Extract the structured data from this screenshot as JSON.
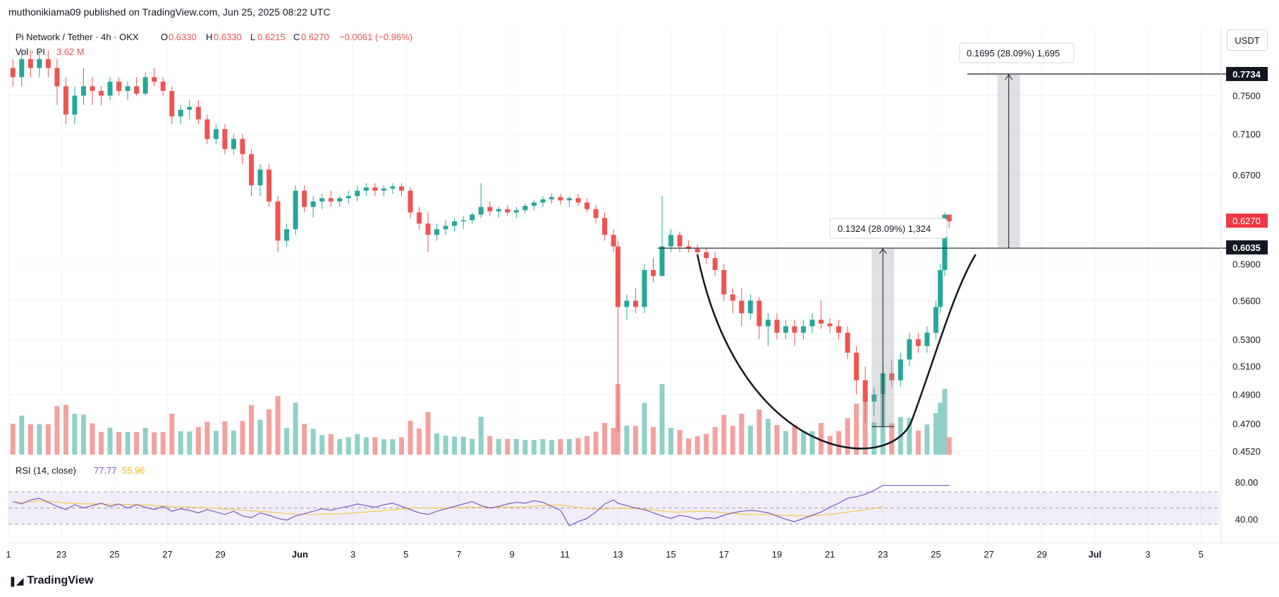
{
  "header": {
    "publisher": "muthonikiama09 published on TradingView.com, Jun 25, 2025 08:22 UTC"
  },
  "legend": {
    "symbol": "Pi Network / Tether · 4h · OKX",
    "o_label": "O",
    "o_value": "0.6330",
    "h_label": "H",
    "h_value": "0.6330",
    "l_label": "L",
    "l_value": "0.6215",
    "c_label": "C",
    "c_value": "0.6270",
    "change": "−0.0061 (−0.96%)",
    "vol_label": "Vol · PI",
    "vol_value": "3.62 M"
  },
  "currency_button": "USDT",
  "brand": {
    "name": "TradingView"
  },
  "colors": {
    "up": "#26a69a",
    "down": "#ef5350",
    "vol_up": "#8fd0c8",
    "vol_down": "#f4a09e",
    "rsi": "#7e57c2",
    "rsi_ma": "#f7c948"
  },
  "price_labels": {
    "target": "0.7734",
    "current": "0.6270",
    "breakout": "0.6035"
  },
  "measure_labels": {
    "upper": "0.1695 (28.09%) 1,695",
    "lower": "0.1324 (28.09%) 1,324"
  },
  "rsi": {
    "label": "RSI (14, close)",
    "value": "77.77",
    "ma_value": "55.96",
    "levels": [
      "80.00",
      "40.00"
    ]
  },
  "chart_data": {
    "type": "candlestick",
    "title": "Pi Network / Tether · 4h · OKX",
    "y_scale": "log",
    "y_ticks": [
      "0.7500",
      "0.7100",
      "0.6700",
      "0.5900",
      "0.5600",
      "0.5300",
      "0.5100",
      "0.4900",
      "0.4700",
      "0.4520"
    ],
    "x_ticks": [
      "1",
      "23",
      "25",
      "27",
      "29",
      "Jun",
      "3",
      "5",
      "7",
      "9",
      "11",
      "13",
      "15",
      "17",
      "19",
      "21",
      "23",
      "25",
      "27",
      "29",
      "Jul",
      "3",
      "5"
    ],
    "x_range_days": [
      "May 21",
      "Jul 5"
    ],
    "candles": [
      [
        "May 21 04:00",
        0.78,
        0.79,
        0.76,
        0.77
      ],
      [
        "May 21 12:00",
        0.77,
        0.8,
        0.76,
        0.79
      ],
      [
        "May 21 20:00",
        0.79,
        0.8,
        0.77,
        0.78
      ],
      [
        "May 22 04:00",
        0.78,
        0.8,
        0.77,
        0.79
      ],
      [
        "May 22 12:00",
        0.79,
        0.8,
        0.77,
        0.78
      ],
      [
        "May 22 20:00",
        0.78,
        0.79,
        0.74,
        0.76
      ],
      [
        "May 23 04:00",
        0.76,
        0.77,
        0.72,
        0.73
      ],
      [
        "May 23 12:00",
        0.73,
        0.76,
        0.72,
        0.75
      ],
      [
        "May 23 20:00",
        0.75,
        0.78,
        0.74,
        0.76
      ],
      [
        "May 24 04:00",
        0.76,
        0.77,
        0.74,
        0.755
      ],
      [
        "May 24 12:00",
        0.755,
        0.76,
        0.74,
        0.75
      ],
      [
        "May 24 20:00",
        0.75,
        0.77,
        0.745,
        0.765
      ],
      [
        "May 25 04:00",
        0.765,
        0.77,
        0.75,
        0.755
      ],
      [
        "May 25 12:00",
        0.755,
        0.765,
        0.745,
        0.76
      ],
      [
        "May 25 20:00",
        0.76,
        0.77,
        0.75,
        0.752
      ],
      [
        "May 26 04:00",
        0.752,
        0.775,
        0.75,
        0.77
      ],
      [
        "May 26 12:00",
        0.77,
        0.78,
        0.76,
        0.765
      ],
      [
        "May 26 20:00",
        0.765,
        0.77,
        0.75,
        0.755
      ],
      [
        "May 27 04:00",
        0.755,
        0.76,
        0.72,
        0.728
      ],
      [
        "May 27 12:00",
        0.728,
        0.74,
        0.72,
        0.735
      ],
      [
        "May 27 20:00",
        0.735,
        0.745,
        0.725,
        0.738
      ],
      [
        "May 28 04:00",
        0.738,
        0.745,
        0.72,
        0.725
      ],
      [
        "May 28 12:00",
        0.725,
        0.73,
        0.7,
        0.705
      ],
      [
        "May 28 20:00",
        0.705,
        0.72,
        0.7,
        0.715
      ],
      [
        "May 29 04:00",
        0.715,
        0.72,
        0.69,
        0.695
      ],
      [
        "May 29 12:00",
        0.695,
        0.71,
        0.69,
        0.705
      ],
      [
        "May 29 20:00",
        0.705,
        0.71,
        0.68,
        0.69
      ],
      [
        "May 30 04:00",
        0.69,
        0.695,
        0.65,
        0.66
      ],
      [
        "May 30 12:00",
        0.66,
        0.68,
        0.65,
        0.675
      ],
      [
        "May 30 20:00",
        0.675,
        0.68,
        0.64,
        0.645
      ],
      [
        "May 31 04:00",
        0.645,
        0.65,
        0.6,
        0.61
      ],
      [
        "May 31 12:00",
        0.61,
        0.625,
        0.605,
        0.62
      ],
      [
        "May 31 20:00",
        0.62,
        0.66,
        0.615,
        0.655
      ],
      [
        "Jun 01 04:00",
        0.655,
        0.66,
        0.635,
        0.64
      ],
      [
        "Jun 01 12:00",
        0.64,
        0.65,
        0.63,
        0.645
      ],
      [
        "Jun 01 20:00",
        0.645,
        0.652,
        0.638,
        0.648
      ],
      [
        "Jun 02 04:00",
        0.648,
        0.655,
        0.64,
        0.645
      ],
      [
        "Jun 02 12:00",
        0.645,
        0.65,
        0.64,
        0.648
      ],
      [
        "Jun 02 20:00",
        0.648,
        0.655,
        0.643,
        0.65
      ],
      [
        "Jun 03 04:00",
        0.65,
        0.66,
        0.645,
        0.655
      ],
      [
        "Jun 03 12:00",
        0.655,
        0.662,
        0.65,
        0.658
      ],
      [
        "Jun 03 20:00",
        0.658,
        0.662,
        0.65,
        0.655
      ],
      [
        "Jun 04 04:00",
        0.655,
        0.66,
        0.65,
        0.657
      ],
      [
        "Jun 04 12:00",
        0.657,
        0.662,
        0.652,
        0.659
      ],
      [
        "Jun 04 20:00",
        0.659,
        0.662,
        0.65,
        0.655
      ],
      [
        "Jun 05 04:00",
        0.655,
        0.658,
        0.63,
        0.635
      ],
      [
        "Jun 05 12:00",
        0.635,
        0.64,
        0.62,
        0.625
      ],
      [
        "Jun 05 20:00",
        0.625,
        0.635,
        0.6,
        0.615
      ],
      [
        "Jun 06 04:00",
        0.615,
        0.625,
        0.61,
        0.62
      ],
      [
        "Jun 06 12:00",
        0.62,
        0.628,
        0.615,
        0.623
      ],
      [
        "Jun 06 20:00",
        0.623,
        0.63,
        0.618,
        0.627
      ],
      [
        "Jun 07 04:00",
        0.627,
        0.632,
        0.62,
        0.628
      ],
      [
        "Jun 07 12:00",
        0.628,
        0.635,
        0.625,
        0.633
      ],
      [
        "Jun 07 20:00",
        0.633,
        0.662,
        0.63,
        0.64
      ],
      [
        "Jun 08 04:00",
        0.64,
        0.645,
        0.632,
        0.636
      ],
      [
        "Jun 08 12:00",
        0.636,
        0.64,
        0.63,
        0.638
      ],
      [
        "Jun 08 20:00",
        0.638,
        0.642,
        0.632,
        0.635
      ],
      [
        "Jun 09 04:00",
        0.635,
        0.64,
        0.63,
        0.637
      ],
      [
        "Jun 09 12:00",
        0.637,
        0.643,
        0.634,
        0.641
      ],
      [
        "Jun 09 20:00",
        0.641,
        0.646,
        0.637,
        0.644
      ],
      [
        "Jun 10 04:00",
        0.644,
        0.65,
        0.64,
        0.647
      ],
      [
        "Jun 10 12:00",
        0.647,
        0.652,
        0.643,
        0.649
      ],
      [
        "Jun 10 20:00",
        0.649,
        0.652,
        0.642,
        0.646
      ],
      [
        "Jun 11 04:00",
        0.646,
        0.65,
        0.64,
        0.648
      ],
      [
        "Jun 11 12:00",
        0.648,
        0.652,
        0.641,
        0.644
      ],
      [
        "Jun 11 20:00",
        0.644,
        0.648,
        0.635,
        0.638
      ],
      [
        "Jun 12 04:00",
        0.638,
        0.642,
        0.625,
        0.63
      ],
      [
        "Jun 12 12:00",
        0.63,
        0.635,
        0.61,
        0.615
      ],
      [
        "Jun 12 20:00",
        0.615,
        0.62,
        0.6,
        0.605
      ],
      [
        "Jun 13 00:00",
        0.605,
        0.61,
        0.465,
        0.555
      ],
      [
        "Jun 13 08:00",
        0.555,
        0.565,
        0.545,
        0.56
      ],
      [
        "Jun 13 16:00",
        0.56,
        0.57,
        0.55,
        0.555
      ],
      [
        "Jun 14 00:00",
        0.555,
        0.59,
        0.55,
        0.585
      ],
      [
        "Jun 14 08:00",
        0.585,
        0.595,
        0.575,
        0.58
      ],
      [
        "Jun 14 16:00",
        0.58,
        0.65,
        0.58,
        0.605
      ],
      [
        "Jun 15 00:00",
        0.605,
        0.62,
        0.6,
        0.615
      ],
      [
        "Jun 15 08:00",
        0.615,
        0.618,
        0.6,
        0.605
      ],
      [
        "Jun 15 16:00",
        0.605,
        0.61,
        0.6,
        0.603
      ],
      [
        "Jun 16 00:00",
        0.603,
        0.607,
        0.595,
        0.6
      ],
      [
        "Jun 16 08:00",
        0.6,
        0.604,
        0.59,
        0.595
      ],
      [
        "Jun 16 16:00",
        0.595,
        0.6,
        0.58,
        0.585
      ],
      [
        "Jun 17 00:00",
        0.585,
        0.59,
        0.56,
        0.565
      ],
      [
        "Jun 17 08:00",
        0.565,
        0.57,
        0.55,
        0.56
      ],
      [
        "Jun 17 16:00",
        0.56,
        0.57,
        0.54,
        0.55
      ],
      [
        "Jun 18 00:00",
        0.55,
        0.565,
        0.545,
        0.56
      ],
      [
        "Jun 18 08:00",
        0.56,
        0.563,
        0.53,
        0.54
      ],
      [
        "Jun 18 16:00",
        0.54,
        0.55,
        0.525,
        0.545
      ],
      [
        "Jun 19 00:00",
        0.545,
        0.55,
        0.53,
        0.535
      ],
      [
        "Jun 19 08:00",
        0.535,
        0.545,
        0.53,
        0.54
      ],
      [
        "Jun 19 16:00",
        0.54,
        0.545,
        0.525,
        0.535
      ],
      [
        "Jun 20 00:00",
        0.535,
        0.545,
        0.53,
        0.54
      ],
      [
        "Jun 20 08:00",
        0.54,
        0.55,
        0.535,
        0.545
      ],
      [
        "Jun 20 16:00",
        0.545,
        0.56,
        0.538,
        0.542
      ],
      [
        "Jun 21 00:00",
        0.542,
        0.546,
        0.535,
        0.54
      ],
      [
        "Jun 21 08:00",
        0.54,
        0.545,
        0.53,
        0.535
      ],
      [
        "Jun 21 16:00",
        0.535,
        0.54,
        0.515,
        0.52
      ],
      [
        "Jun 22 00:00",
        0.52,
        0.525,
        0.49,
        0.5
      ],
      [
        "Jun 22 08:00",
        0.5,
        0.51,
        0.47,
        0.485
      ],
      [
        "Jun 22 16:00",
        0.485,
        0.495,
        0.475,
        0.49
      ],
      [
        "Jun 23 00:00",
        0.49,
        0.51,
        0.47,
        0.505
      ],
      [
        "Jun 23 08:00",
        0.505,
        0.515,
        0.495,
        0.5
      ],
      [
        "Jun 23 16:00",
        0.5,
        0.52,
        0.495,
        0.515
      ],
      [
        "Jun 24 00:00",
        0.515,
        0.535,
        0.51,
        0.53
      ],
      [
        "Jun 24 08:00",
        0.53,
        0.535,
        0.52,
        0.525
      ],
      [
        "Jun 24 16:00",
        0.525,
        0.54,
        0.52,
        0.535
      ],
      [
        "Jun 25 00:00",
        0.535,
        0.56,
        0.53,
        0.555
      ],
      [
        "Jun 25 04:00",
        0.555,
        0.59,
        0.55,
        0.585
      ],
      [
        "Jun 25 08:00",
        0.585,
        0.635,
        0.58,
        0.633
      ],
      [
        "Jun 25 12:00",
        0.633,
        0.633,
        0.6215,
        0.627
      ]
    ],
    "rsi_series": [
      58,
      55,
      60,
      62,
      57,
      52,
      48,
      54,
      50,
      53,
      56,
      52,
      55,
      50,
      54,
      51,
      48,
      52,
      46,
      49,
      47,
      44,
      48,
      45,
      42,
      46,
      40,
      38,
      44,
      41,
      37,
      35,
      40,
      43,
      46,
      49,
      47,
      50,
      52,
      55,
      53,
      51,
      54,
      56,
      52,
      48,
      44,
      42,
      46,
      49,
      52,
      55,
      58,
      53,
      50,
      52,
      55,
      57,
      56,
      59,
      57,
      52,
      47,
      28,
      33,
      37,
      45,
      55,
      60,
      56,
      53,
      50,
      48,
      44,
      40,
      37,
      41,
      39,
      36,
      38,
      37,
      41,
      44,
      46,
      47,
      46,
      44,
      40,
      36,
      33,
      37,
      41,
      45,
      51,
      56,
      62,
      64,
      67,
      72,
      78
    ],
    "annotations": {
      "breakout_level": 0.6035,
      "target_level": 0.7734,
      "pattern": "cup"
    }
  }
}
